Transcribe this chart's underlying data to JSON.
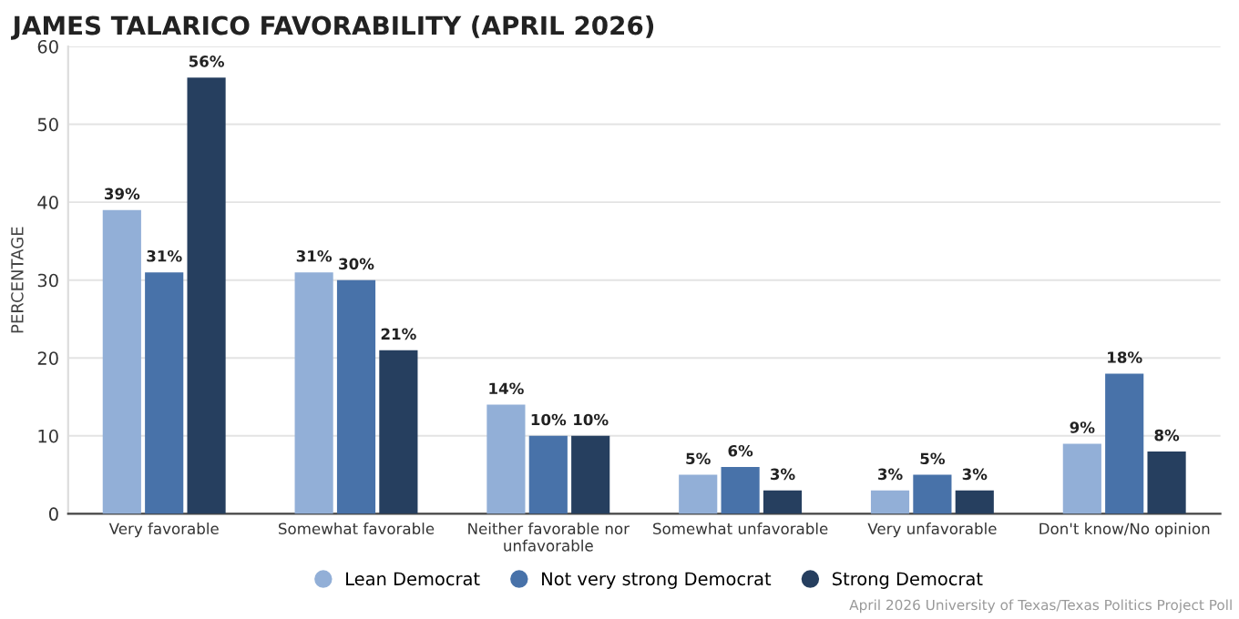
{
  "chart_data": {
    "type": "bar",
    "title": "JAMES TALARICO FAVORABILITY (APRIL 2026)",
    "ylabel": "PERCENTAGE",
    "categories": [
      "Very favorable",
      "Somewhat favorable",
      "Neither favorable nor\nunfavorable",
      "Somewhat unfavorable",
      "Very unfavorable",
      "Don't know/No opinion"
    ],
    "series": [
      {
        "name": "Lean Democrat",
        "color": "#92afd7",
        "values": [
          39,
          31,
          14,
          5,
          3,
          9
        ],
        "value_labels": [
          "39%",
          "31%",
          "14%",
          "5%",
          "3%",
          "9%"
        ]
      },
      {
        "name": "Not very strong Democrat",
        "color": "#4872a9",
        "values": [
          31,
          30,
          10,
          6,
          5,
          18
        ],
        "value_labels": [
          "31%",
          "30%",
          "10%",
          "6%",
          "5%",
          "18%"
        ]
      },
      {
        "name": "Strong Democrat",
        "color": "#263f5f",
        "values": [
          56,
          21,
          10,
          3,
          3,
          8
        ],
        "value_labels": [
          "56%",
          "21%",
          "10%",
          "3%",
          "3%",
          "8%"
        ]
      }
    ],
    "ylim": [
      0,
      60
    ],
    "yticks": [
      0,
      10,
      20,
      30,
      40,
      50,
      60
    ],
    "grid": "y",
    "legend": "bottom",
    "annotations": [
      "April 2026 University of Texas/Texas Politics Project Poll"
    ]
  }
}
